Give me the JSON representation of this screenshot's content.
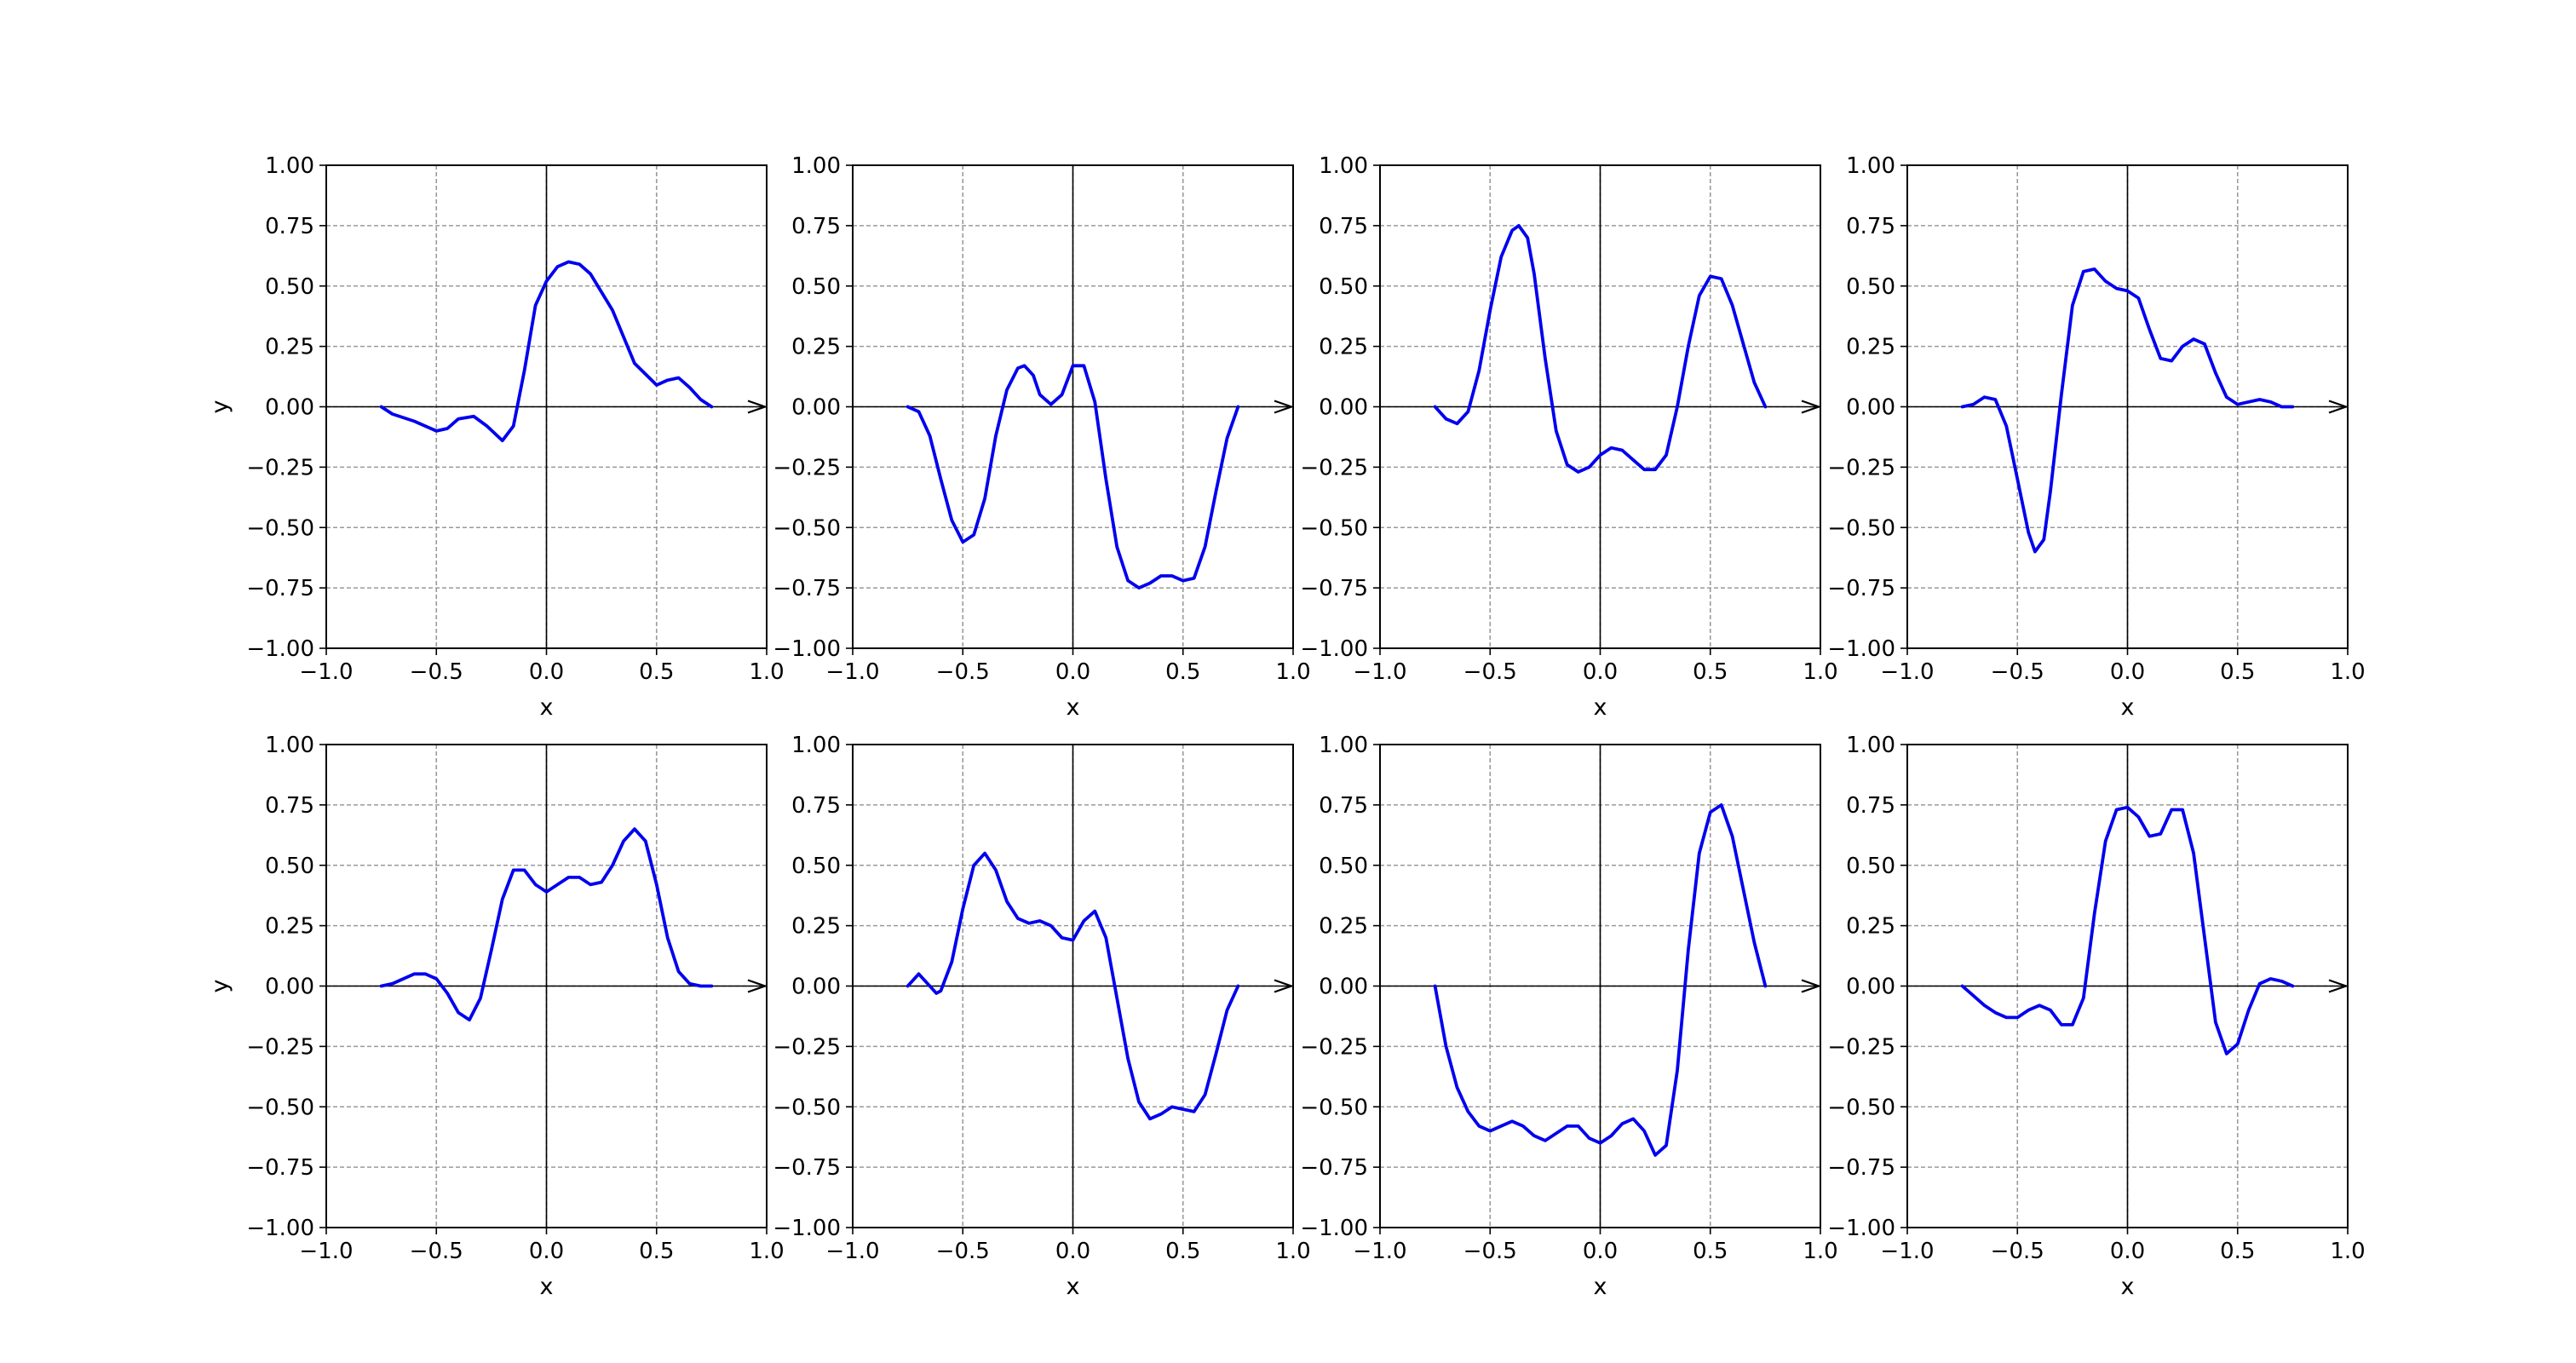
{
  "figure": {
    "background": "#ffffff",
    "line_color": "#0000ee",
    "grid_color": "#9a9a9a",
    "axis_line_color": "#000000"
  },
  "chart_data": [
    {
      "type": "line",
      "xlabel": "x",
      "ylabel": "y",
      "xlim": [
        -1.0,
        1.0
      ],
      "ylim": [
        -1.0,
        1.0
      ],
      "xticks": [
        "−1.0",
        "−0.5",
        "0.0",
        "0.5",
        "1.0"
      ],
      "yticks": [
        "−1.00",
        "−0.75",
        "−0.50",
        "−0.25",
        "0.00",
        "0.25",
        "0.50",
        "0.75",
        "1.00"
      ],
      "grid": true,
      "axis_arrow": true,
      "x": [
        -0.75,
        -0.7,
        -0.6,
        -0.5,
        -0.45,
        -0.4,
        -0.33,
        -0.27,
        -0.2,
        -0.15,
        -0.1,
        -0.05,
        0.0,
        0.05,
        0.1,
        0.15,
        0.2,
        0.3,
        0.4,
        0.5,
        0.55,
        0.6,
        0.65,
        0.7,
        0.75
      ],
      "y": [
        0.0,
        -0.03,
        -0.06,
        -0.1,
        -0.09,
        -0.05,
        -0.04,
        -0.08,
        -0.14,
        -0.08,
        0.15,
        0.42,
        0.52,
        0.58,
        0.6,
        0.59,
        0.55,
        0.4,
        0.18,
        0.09,
        0.11,
        0.12,
        0.08,
        0.03,
        0.0
      ]
    },
    {
      "type": "line",
      "xlabel": "x",
      "ylabel": "",
      "xlim": [
        -1.0,
        1.0
      ],
      "ylim": [
        -1.0,
        1.0
      ],
      "xticks": [
        "−1.0",
        "−0.5",
        "0.0",
        "0.5",
        "1.0"
      ],
      "yticks": [
        "−1.00",
        "−0.75",
        "−0.50",
        "−0.25",
        "0.00",
        "0.25",
        "0.50",
        "0.75",
        "1.00"
      ],
      "grid": true,
      "axis_arrow": true,
      "x": [
        -0.75,
        -0.7,
        -0.65,
        -0.6,
        -0.55,
        -0.5,
        -0.45,
        -0.4,
        -0.35,
        -0.3,
        -0.25,
        -0.22,
        -0.18,
        -0.15,
        -0.1,
        -0.05,
        0.0,
        0.05,
        0.1,
        0.15,
        0.2,
        0.25,
        0.3,
        0.35,
        0.4,
        0.45,
        0.5,
        0.55,
        0.6,
        0.65,
        0.7,
        0.75
      ],
      "y": [
        0.0,
        -0.02,
        -0.12,
        -0.3,
        -0.47,
        -0.56,
        -0.53,
        -0.38,
        -0.12,
        0.07,
        0.16,
        0.17,
        0.13,
        0.05,
        0.01,
        0.05,
        0.17,
        0.17,
        0.02,
        -0.3,
        -0.58,
        -0.72,
        -0.75,
        -0.73,
        -0.7,
        -0.7,
        -0.72,
        -0.71,
        -0.58,
        -0.35,
        -0.13,
        0.0
      ]
    },
    {
      "type": "line",
      "xlabel": "x",
      "ylabel": "",
      "xlim": [
        -1.0,
        1.0
      ],
      "ylim": [
        -1.0,
        1.0
      ],
      "xticks": [
        "−1.0",
        "−0.5",
        "0.0",
        "0.5",
        "1.0"
      ],
      "yticks": [
        "−1.00",
        "−0.75",
        "−0.50",
        "−0.25",
        "0.00",
        "0.25",
        "0.50",
        "0.75",
        "1.00"
      ],
      "grid": true,
      "axis_arrow": true,
      "x": [
        -0.75,
        -0.7,
        -0.65,
        -0.6,
        -0.55,
        -0.5,
        -0.45,
        -0.4,
        -0.37,
        -0.33,
        -0.3,
        -0.25,
        -0.2,
        -0.15,
        -0.1,
        -0.05,
        0.0,
        0.05,
        0.1,
        0.15,
        0.2,
        0.25,
        0.3,
        0.35,
        0.4,
        0.45,
        0.5,
        0.55,
        0.6,
        0.65,
        0.7,
        0.75
      ],
      "y": [
        0.0,
        -0.05,
        -0.07,
        -0.02,
        0.15,
        0.4,
        0.62,
        0.73,
        0.75,
        0.7,
        0.55,
        0.2,
        -0.1,
        -0.24,
        -0.27,
        -0.25,
        -0.2,
        -0.17,
        -0.18,
        -0.22,
        -0.26,
        -0.26,
        -0.2,
        0.0,
        0.25,
        0.46,
        0.54,
        0.53,
        0.42,
        0.26,
        0.1,
        0.0
      ]
    },
    {
      "type": "line",
      "xlabel": "x",
      "ylabel": "",
      "xlim": [
        -1.0,
        1.0
      ],
      "ylim": [
        -1.0,
        1.0
      ],
      "xticks": [
        "−1.0",
        "−0.5",
        "0.0",
        "0.5",
        "1.0"
      ],
      "yticks": [
        "−1.00",
        "−0.75",
        "−0.50",
        "−0.25",
        "0.00",
        "0.25",
        "0.50",
        "0.75",
        "1.00"
      ],
      "grid": true,
      "axis_arrow": true,
      "x": [
        -0.75,
        -0.7,
        -0.65,
        -0.6,
        -0.55,
        -0.5,
        -0.45,
        -0.42,
        -0.38,
        -0.35,
        -0.3,
        -0.25,
        -0.2,
        -0.15,
        -0.1,
        -0.05,
        0.0,
        0.05,
        0.1,
        0.15,
        0.2,
        0.25,
        0.3,
        0.35,
        0.4,
        0.45,
        0.5,
        0.55,
        0.6,
        0.65,
        0.7,
        0.75
      ],
      "y": [
        0.0,
        0.01,
        0.04,
        0.03,
        -0.08,
        -0.3,
        -0.52,
        -0.6,
        -0.55,
        -0.35,
        0.05,
        0.42,
        0.56,
        0.57,
        0.52,
        0.49,
        0.48,
        0.45,
        0.32,
        0.2,
        0.19,
        0.25,
        0.28,
        0.26,
        0.14,
        0.04,
        0.01,
        0.02,
        0.03,
        0.02,
        0.0,
        0.0
      ]
    },
    {
      "type": "line",
      "xlabel": "x",
      "ylabel": "y",
      "xlim": [
        -1.0,
        1.0
      ],
      "ylim": [
        -1.0,
        1.0
      ],
      "xticks": [
        "−1.0",
        "−0.5",
        "0.0",
        "0.5",
        "1.0"
      ],
      "yticks": [
        "−1.00",
        "−0.75",
        "−0.50",
        "−0.25",
        "0.00",
        "0.25",
        "0.50",
        "0.75",
        "1.00"
      ],
      "grid": true,
      "axis_arrow": true,
      "x": [
        -0.75,
        -0.7,
        -0.65,
        -0.6,
        -0.55,
        -0.5,
        -0.45,
        -0.4,
        -0.35,
        -0.3,
        -0.25,
        -0.2,
        -0.15,
        -0.1,
        -0.05,
        0.0,
        0.05,
        0.1,
        0.15,
        0.2,
        0.25,
        0.3,
        0.35,
        0.4,
        0.45,
        0.5,
        0.55,
        0.6,
        0.65,
        0.7,
        0.75
      ],
      "y": [
        0.0,
        0.01,
        0.03,
        0.05,
        0.05,
        0.03,
        -0.03,
        -0.11,
        -0.14,
        -0.05,
        0.15,
        0.36,
        0.48,
        0.48,
        0.42,
        0.39,
        0.42,
        0.45,
        0.45,
        0.42,
        0.43,
        0.5,
        0.6,
        0.65,
        0.6,
        0.42,
        0.2,
        0.06,
        0.01,
        0.0,
        0.0
      ]
    },
    {
      "type": "line",
      "xlabel": "x",
      "ylabel": "",
      "xlim": [
        -1.0,
        1.0
      ],
      "ylim": [
        -1.0,
        1.0
      ],
      "xticks": [
        "−1.0",
        "−0.5",
        "0.0",
        "0.5",
        "1.0"
      ],
      "yticks": [
        "−1.00",
        "−0.75",
        "−0.50",
        "−0.25",
        "0.00",
        "0.25",
        "0.50",
        "0.75",
        "1.00"
      ],
      "grid": true,
      "axis_arrow": true,
      "x": [
        -0.75,
        -0.7,
        -0.65,
        -0.62,
        -0.6,
        -0.55,
        -0.5,
        -0.45,
        -0.4,
        -0.35,
        -0.3,
        -0.25,
        -0.2,
        -0.15,
        -0.1,
        -0.05,
        0.0,
        0.05,
        0.1,
        0.15,
        0.2,
        0.25,
        0.3,
        0.35,
        0.4,
        0.45,
        0.5,
        0.55,
        0.6,
        0.65,
        0.7,
        0.75
      ],
      "y": [
        0.0,
        0.05,
        0.0,
        -0.03,
        -0.02,
        0.1,
        0.32,
        0.5,
        0.55,
        0.48,
        0.35,
        0.28,
        0.26,
        0.27,
        0.25,
        0.2,
        0.19,
        0.27,
        0.31,
        0.2,
        -0.05,
        -0.3,
        -0.48,
        -0.55,
        -0.53,
        -0.5,
        -0.51,
        -0.52,
        -0.45,
        -0.28,
        -0.1,
        0.0
      ]
    },
    {
      "type": "line",
      "xlabel": "x",
      "ylabel": "",
      "xlim": [
        -1.0,
        1.0
      ],
      "ylim": [
        -1.0,
        1.0
      ],
      "xticks": [
        "−1.0",
        "−0.5",
        "0.0",
        "0.5",
        "1.0"
      ],
      "yticks": [
        "−1.00",
        "−0.75",
        "−0.50",
        "−0.25",
        "0.00",
        "0.25",
        "0.50",
        "0.75",
        "1.00"
      ],
      "grid": true,
      "axis_arrow": true,
      "x": [
        -0.75,
        -0.7,
        -0.65,
        -0.6,
        -0.55,
        -0.5,
        -0.45,
        -0.4,
        -0.35,
        -0.3,
        -0.25,
        -0.2,
        -0.15,
        -0.1,
        -0.05,
        0.0,
        0.05,
        0.1,
        0.15,
        0.2,
        0.25,
        0.3,
        0.35,
        0.4,
        0.45,
        0.5,
        0.55,
        0.6,
        0.65,
        0.7,
        0.75
      ],
      "y": [
        0.0,
        -0.25,
        -0.42,
        -0.52,
        -0.58,
        -0.6,
        -0.58,
        -0.56,
        -0.58,
        -0.62,
        -0.64,
        -0.61,
        -0.58,
        -0.58,
        -0.63,
        -0.65,
        -0.62,
        -0.57,
        -0.55,
        -0.6,
        -0.7,
        -0.66,
        -0.35,
        0.15,
        0.55,
        0.72,
        0.75,
        0.62,
        0.4,
        0.18,
        0.0
      ]
    },
    {
      "type": "line",
      "xlabel": "x",
      "ylabel": "",
      "xlim": [
        -1.0,
        1.0
      ],
      "ylim": [
        -1.0,
        1.0
      ],
      "xticks": [
        "−1.0",
        "−0.5",
        "0.0",
        "0.5",
        "1.0"
      ],
      "yticks": [
        "−1.00",
        "−0.75",
        "−0.50",
        "−0.25",
        "0.00",
        "0.25",
        "0.50",
        "0.75",
        "1.00"
      ],
      "grid": true,
      "axis_arrow": true,
      "x": [
        -0.75,
        -0.7,
        -0.65,
        -0.6,
        -0.55,
        -0.5,
        -0.45,
        -0.4,
        -0.35,
        -0.3,
        -0.25,
        -0.2,
        -0.15,
        -0.1,
        -0.05,
        0.0,
        0.05,
        0.1,
        0.15,
        0.2,
        0.25,
        0.3,
        0.35,
        0.4,
        0.45,
        0.5,
        0.55,
        0.6,
        0.65,
        0.7,
        0.75
      ],
      "y": [
        0.0,
        -0.04,
        -0.08,
        -0.11,
        -0.13,
        -0.13,
        -0.1,
        -0.08,
        -0.1,
        -0.16,
        -0.16,
        -0.05,
        0.3,
        0.6,
        0.73,
        0.74,
        0.7,
        0.62,
        0.63,
        0.73,
        0.73,
        0.55,
        0.2,
        -0.15,
        -0.28,
        -0.24,
        -0.1,
        0.01,
        0.03,
        0.02,
        0.0
      ]
    }
  ]
}
